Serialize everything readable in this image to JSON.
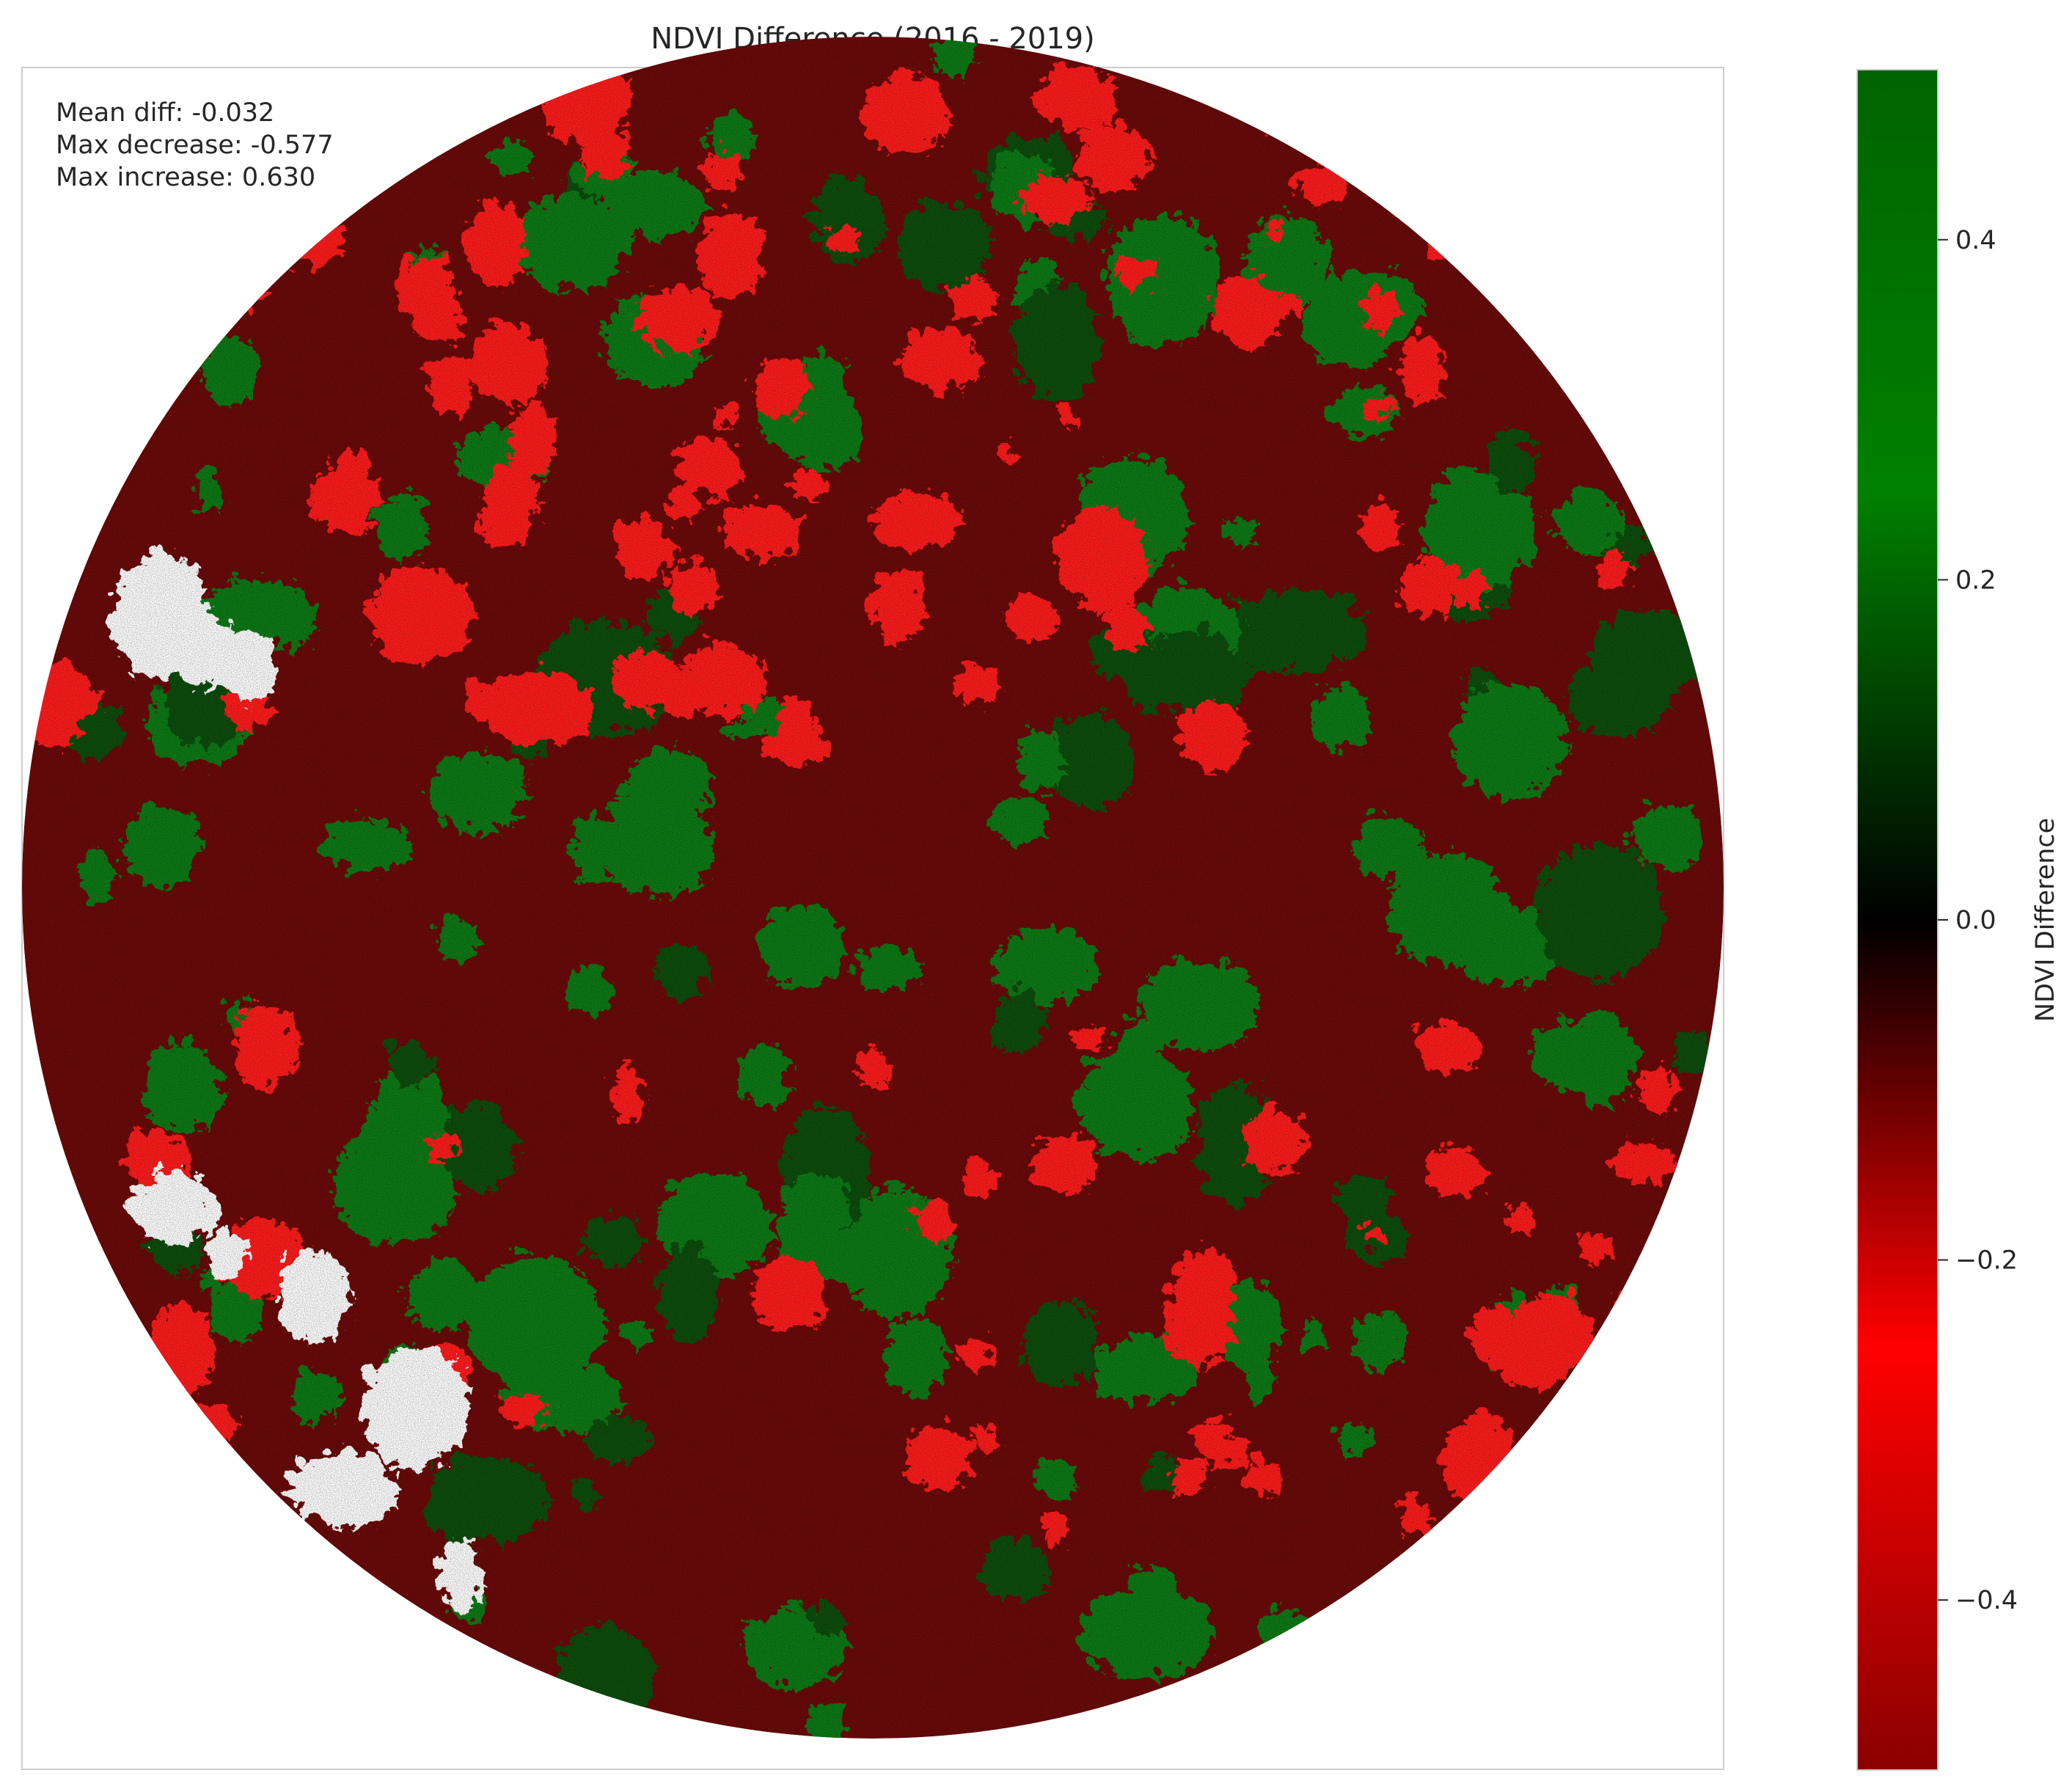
{
  "chart_data": {
    "type": "heatmap",
    "title": "NDVI Difference (2016 - 2019)",
    "annotations": [
      "Mean diff: -0.032",
      "Max decrease: -0.577",
      "Max increase: 0.630"
    ],
    "stats": {
      "mean_diff": -0.032,
      "max_decrease": -0.577,
      "max_increase": 0.63
    },
    "colorbar": {
      "label": "NDVI Difference",
      "range": [
        -0.5,
        0.5
      ],
      "ticks": [
        0.4,
        0.2,
        0.0,
        -0.2,
        -0.4
      ],
      "tick_labels": [
        "0.4",
        "0.2",
        "0.0",
        "−0.2",
        "−0.4"
      ],
      "colors": [
        {
          "value": -0.5,
          "color": "#8b0000"
        },
        {
          "value": -0.25,
          "color": "#ff0000"
        },
        {
          "value": 0.0,
          "color": "#000000"
        },
        {
          "value": 0.25,
          "color": "#008000"
        },
        {
          "value": 0.5,
          "color": "#006400"
        }
      ]
    },
    "map": {
      "shape": "circle",
      "background_color": "#6b0a0a",
      "nodata_color": "#ffffff",
      "grid": false,
      "axes_ticks": false
    },
    "colors": {
      "strong_decrease": "#ff1a1a",
      "increase": "#0f7a12",
      "dark_increase": "#0a4d0c",
      "frame": "#cccccc"
    }
  }
}
